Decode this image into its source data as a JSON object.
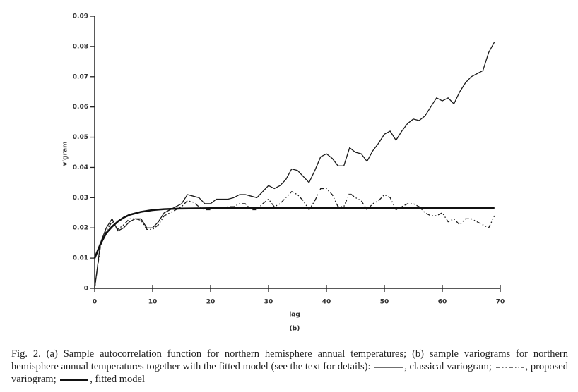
{
  "chart_data": {
    "type": "line",
    "subtitle": "(b)",
    "xlabel": "lag",
    "ylabel": "v'gram",
    "xlim": [
      0,
      70
    ],
    "xticks": [
      0,
      10,
      20,
      30,
      40,
      50,
      60,
      70
    ],
    "ylim": [
      0,
      0.09
    ],
    "yticks": [
      0,
      0.01,
      0.02,
      0.03,
      0.04,
      0.05,
      0.06,
      0.07,
      0.08,
      0.09
    ],
    "series": [
      {
        "color": "#1a1a1a",
        "dash": "solid",
        "width": 1.3,
        "x": [
          0,
          1,
          2,
          3,
          4,
          5,
          6,
          7,
          8,
          9,
          10,
          11,
          12,
          13,
          14,
          15,
          16,
          17,
          18,
          19,
          20,
          21,
          22,
          23,
          24,
          25,
          26,
          27,
          28,
          29,
          30,
          31,
          32,
          33,
          34,
          35,
          36,
          37,
          38,
          39,
          40,
          41,
          42,
          43,
          44,
          45,
          46,
          47,
          48,
          49,
          50,
          51,
          52,
          53,
          54,
          55,
          56,
          57,
          58,
          59,
          60,
          61,
          62,
          63,
          64,
          65,
          66,
          67,
          68,
          69
        ],
        "values": [
          0,
          0.015,
          0.02,
          0.023,
          0.019,
          0.02,
          0.022,
          0.023,
          0.023,
          0.02,
          0.02,
          0.022,
          0.025,
          0.026,
          0.027,
          0.028,
          0.031,
          0.0305,
          0.03,
          0.028,
          0.028,
          0.0295,
          0.0295,
          0.0295,
          0.03,
          0.031,
          0.031,
          0.0305,
          0.03,
          0.032,
          0.034,
          0.033,
          0.034,
          0.036,
          0.0395,
          0.039,
          0.037,
          0.035,
          0.039,
          0.0435,
          0.0445,
          0.043,
          0.0405,
          0.0405,
          0.0465,
          0.045,
          0.0445,
          0.042,
          0.0455,
          0.048,
          0.051,
          0.052,
          0.049,
          0.052,
          0.0545,
          0.056,
          0.0555,
          0.057,
          0.06,
          0.063,
          0.062,
          0.063,
          0.061,
          0.065,
          0.068,
          0.07,
          0.071,
          0.072,
          0.078,
          0.0815
        ]
      },
      {
        "color": "#1a1a1a",
        "dash": "dashdot",
        "width": 1.3,
        "x": [
          0,
          1,
          2,
          3,
          4,
          5,
          6,
          7,
          8,
          9,
          10,
          11,
          12,
          13,
          14,
          15,
          16,
          17,
          18,
          19,
          20,
          21,
          22,
          23,
          24,
          25,
          26,
          27,
          28,
          29,
          30,
          31,
          32,
          33,
          34,
          35,
          36,
          37,
          38,
          39,
          40,
          41,
          42,
          43,
          44,
          45,
          46,
          47,
          48,
          49,
          50,
          51,
          52,
          53,
          54,
          55,
          56,
          57,
          58,
          59,
          60,
          61,
          62,
          63,
          64,
          65,
          66,
          67,
          68,
          69
        ],
        "values": [
          0,
          0.014,
          0.019,
          0.022,
          0.0195,
          0.021,
          0.023,
          0.023,
          0.0225,
          0.0195,
          0.0195,
          0.021,
          0.024,
          0.025,
          0.026,
          0.027,
          0.029,
          0.0285,
          0.027,
          0.026,
          0.026,
          0.027,
          0.0265,
          0.027,
          0.027,
          0.028,
          0.028,
          0.026,
          0.026,
          0.028,
          0.0295,
          0.027,
          0.028,
          0.03,
          0.032,
          0.031,
          0.029,
          0.026,
          0.029,
          0.033,
          0.033,
          0.031,
          0.027,
          0.027,
          0.0315,
          0.03,
          0.029,
          0.026,
          0.028,
          0.029,
          0.031,
          0.03,
          0.026,
          0.027,
          0.028,
          0.028,
          0.027,
          0.025,
          0.024,
          0.024,
          0.025,
          0.022,
          0.023,
          0.021,
          0.023,
          0.023,
          0.022,
          0.021,
          0.02,
          0.024
        ]
      },
      {
        "color": "#111111",
        "dash": "solid",
        "width": 2.6,
        "x": [
          0,
          1,
          2,
          3,
          4,
          5,
          6,
          8,
          10,
          12,
          15,
          20,
          30,
          40,
          50,
          60,
          69
        ],
        "values": [
          0.01,
          0.0147,
          0.0183,
          0.0204,
          0.0221,
          0.0234,
          0.0243,
          0.0253,
          0.0259,
          0.0262,
          0.0264,
          0.0265,
          0.0265,
          0.0265,
          0.0265,
          0.0265,
          0.0265
        ]
      }
    ],
    "caption": [
      "Fig. 2.  (a) Sample autocorrelation function for northern hemisphere annual temperatures; (b) sample variograms for northern hemisphere annual temperatures together with the fitted model (see the text for details): ",
      ", classical variogram; ",
      ", proposed variogram; ",
      ", fitted model"
    ]
  }
}
